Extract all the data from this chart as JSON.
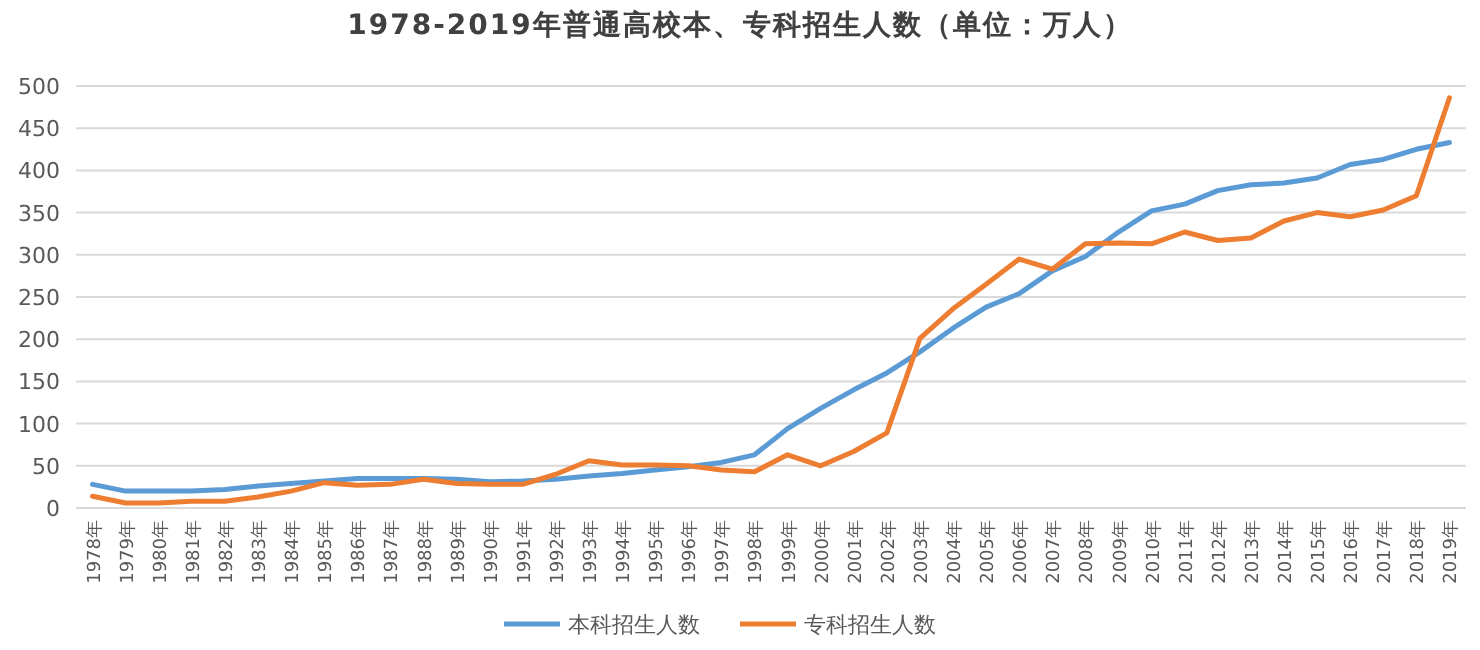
{
  "chart_data": {
    "type": "line",
    "title": "1978-2019年普通高校本、专科招生人数（单位：万人）",
    "categories": [
      "1978年",
      "1979年",
      "1980年",
      "1981年",
      "1982年",
      "1983年",
      "1984年",
      "1985年",
      "1986年",
      "1987年",
      "1988年",
      "1989年",
      "1990年",
      "1991年",
      "1992年",
      "1993年",
      "1994年",
      "1995年",
      "1996年",
      "1997年",
      "1998年",
      "1999年",
      "2000年",
      "2001年",
      "2002年",
      "2003年",
      "2004年",
      "2005年",
      "2006年",
      "2007年",
      "2008年",
      "2009年",
      "2010年",
      "2011年",
      "2012年",
      "2013年",
      "2014年",
      "2015年",
      "2016年",
      "2017年",
      "2018年",
      "2019年"
    ],
    "series": [
      {
        "name": "本科招生人数",
        "color": "#5b9bd5",
        "values": [
          28,
          20,
          20,
          20,
          22,
          26,
          29,
          32,
          35,
          35,
          35,
          34,
          31,
          32,
          34,
          38,
          41,
          45,
          49,
          54,
          63,
          94,
          118,
          140,
          160,
          185,
          213,
          238,
          254,
          281,
          298,
          327,
          352,
          360,
          376,
          383,
          385,
          391,
          407,
          413,
          425,
          433
        ]
      },
      {
        "name": "专科招生人数",
        "color": "#ed7d31",
        "values": [
          14,
          6,
          6,
          8,
          8,
          13,
          20,
          30,
          27,
          28,
          34,
          29,
          28,
          28,
          40,
          56,
          51,
          51,
          50,
          45,
          43,
          63,
          50,
          67,
          89,
          201,
          236,
          265,
          295,
          283,
          313,
          314,
          313,
          327,
          317,
          320,
          340,
          350,
          345,
          353,
          370,
          486
        ]
      }
    ],
    "ylim": [
      0,
      500
    ],
    "yticks": [
      0,
      50,
      100,
      150,
      200,
      250,
      300,
      350,
      400,
      450,
      500
    ],
    "grid": "y",
    "legend": "bottom",
    "marker": "none",
    "line_style": "solid"
  }
}
